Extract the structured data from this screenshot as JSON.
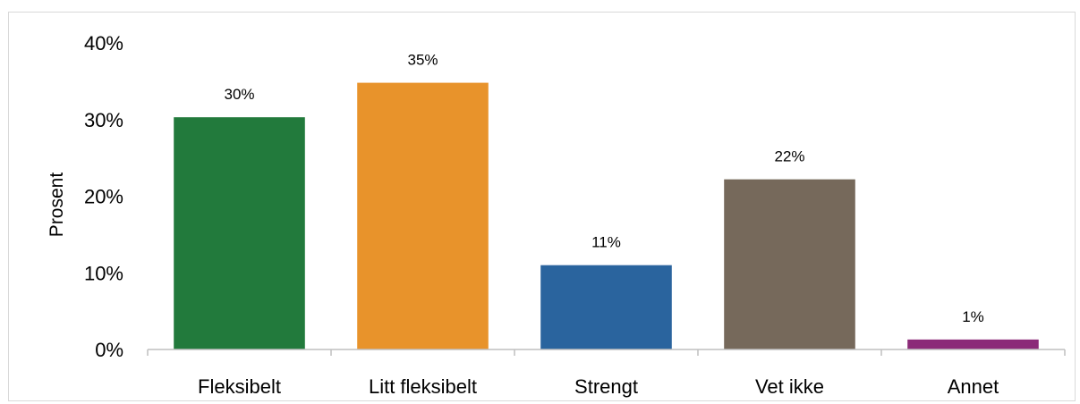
{
  "chart_data": {
    "type": "bar",
    "title": "",
    "xlabel": "",
    "ylabel": "Prosent",
    "ylim": [
      0,
      40
    ],
    "yticks": [
      0,
      10,
      20,
      30,
      40
    ],
    "ytick_labels": [
      "0%",
      "10%",
      "20%",
      "30%",
      "40%"
    ],
    "grid": false,
    "legend": "none",
    "categories": [
      "Fleksibelt",
      "Litt fleksibelt",
      "Strengt",
      "Vet ikke",
      "Annet"
    ],
    "values": [
      30.3,
      34.8,
      11.0,
      22.2,
      1.3
    ],
    "data_labels": [
      "30%",
      "35%",
      "11%",
      "22%",
      "1%"
    ],
    "colors": [
      "#227a3c",
      "#e8932b",
      "#2a649e",
      "#76695b",
      "#8b2a78"
    ],
    "axis_color": "#bfbfbf"
  }
}
